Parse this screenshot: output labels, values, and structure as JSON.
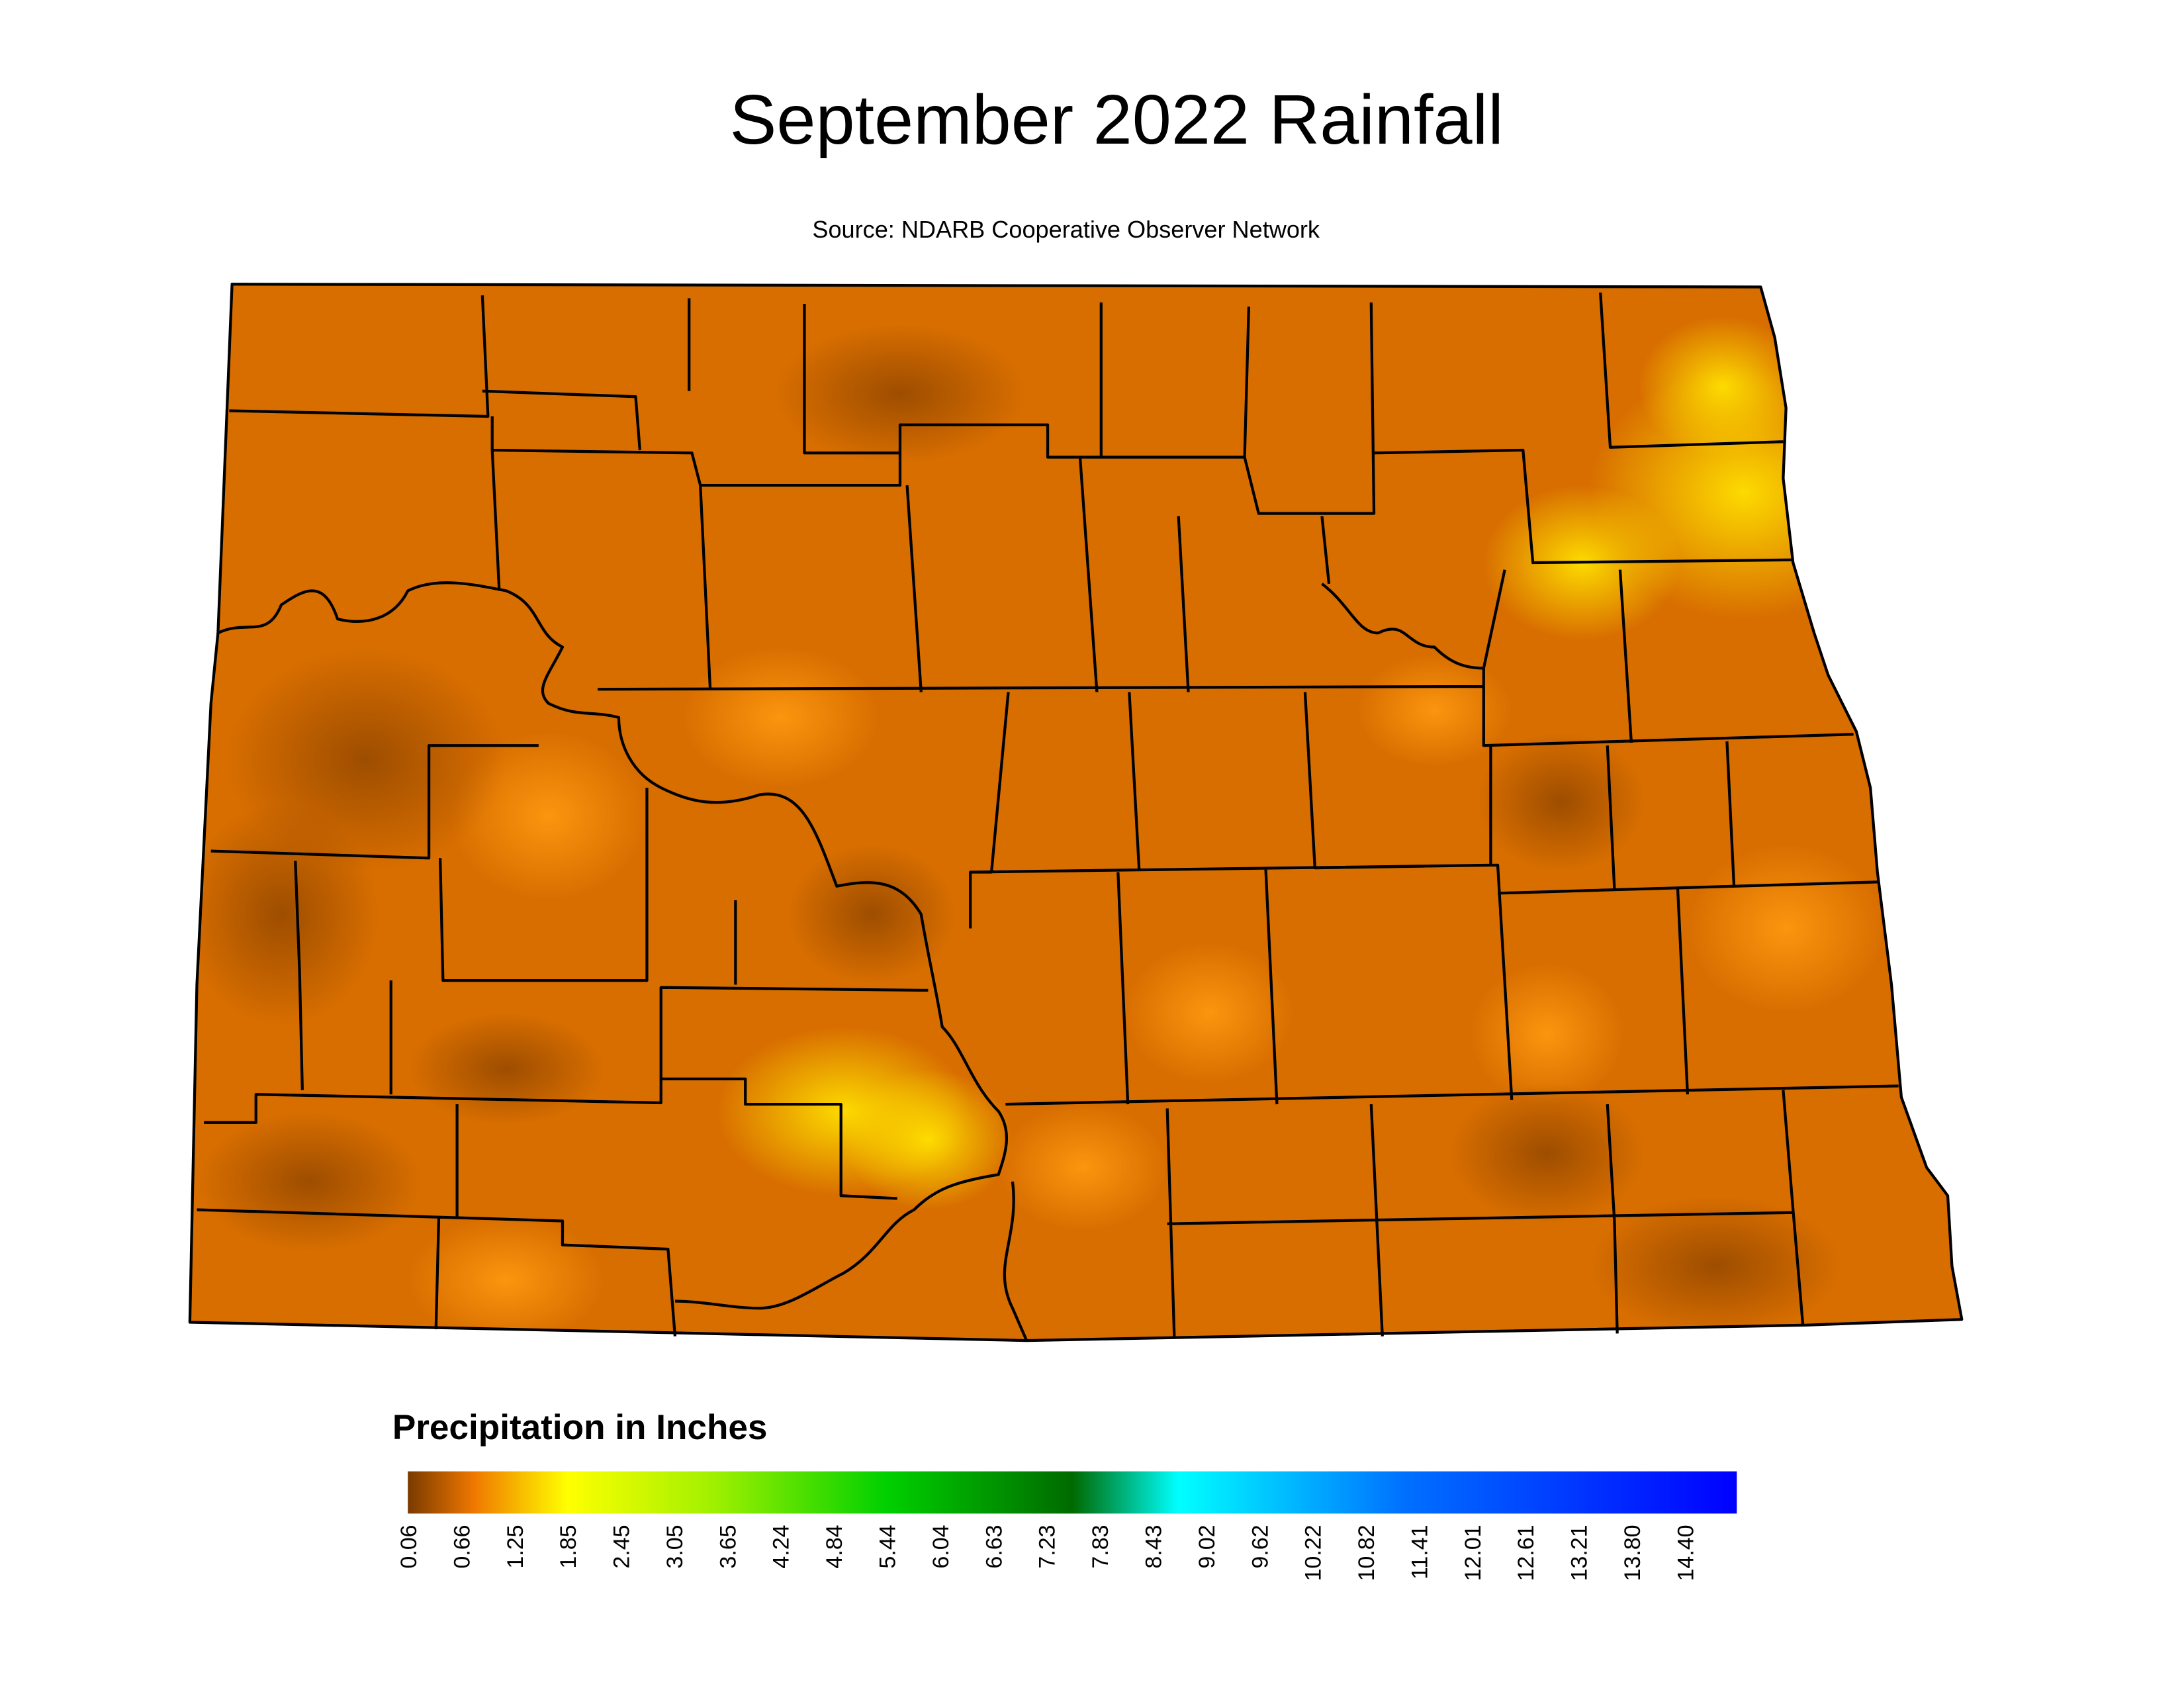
{
  "title": "September 2022 Rainfall",
  "source": "Source: NDARB Cooperative Observer Network",
  "legend": {
    "title": "Precipitation in Inches",
    "labels": [
      "0.06",
      "0.66",
      "1.25",
      "1.85",
      "2.45",
      "3.05",
      "3.65",
      "4.24",
      "4.84",
      "5.44",
      "6.04",
      "6.63",
      "7.23",
      "7.83",
      "8.43",
      "9.02",
      "9.62",
      "10.22",
      "10.82",
      "11.41",
      "12.01",
      "12.61",
      "13.21",
      "13.80",
      "14.40"
    ]
  }
}
